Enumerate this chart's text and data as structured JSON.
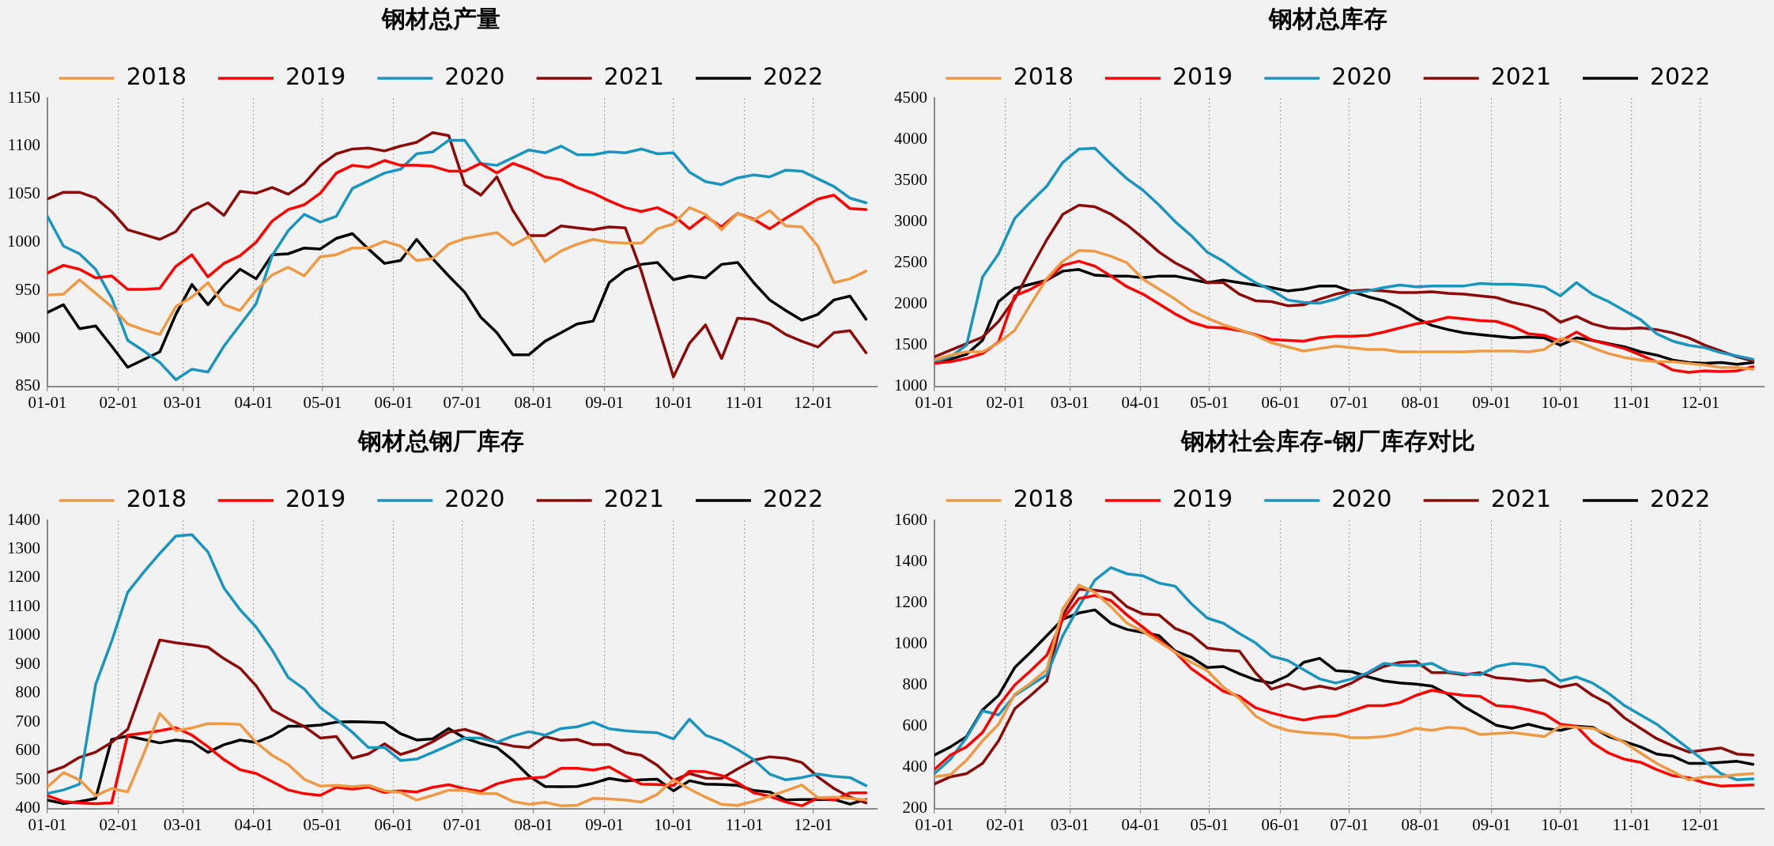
{
  "chart_data": [
    {
      "type": "line",
      "title": "钢材总产量",
      "grid": "x",
      "legend": "top",
      "marker": "none",
      "x": [
        "--01-01",
        "--01-08",
        "--01-15",
        "--01-22",
        "--01-29",
        "--02-05",
        "--02-12",
        "--02-19",
        "--02-26",
        "--03-05",
        "--03-12",
        "--03-19",
        "--03-26",
        "--04-02",
        "--04-09",
        "--04-16",
        "--04-23",
        "--04-30",
        "--05-07",
        "--05-14",
        "--05-21",
        "--05-28",
        "--06-04",
        "--06-11",
        "--06-18",
        "--06-25",
        "--07-02",
        "--07-09",
        "--07-16",
        "--07-23",
        "--07-30",
        "--08-06",
        "--08-13",
        "--08-20",
        "--08-27",
        "--09-03",
        "--09-10",
        "--09-17",
        "--09-24",
        "--10-01",
        "--10-08",
        "--10-15",
        "--10-22",
        "--10-29",
        "--11-05",
        "--11-12",
        "--11-19",
        "--11-26",
        "--12-03",
        "--12-10",
        "--12-17",
        "--12-24"
      ],
      "xlim": [
        "--01-01",
        "--12-29"
      ],
      "xticks": [
        {
          "value": "--01-01",
          "label": "01-01"
        },
        {
          "value": "--02-01",
          "label": "02-01"
        },
        {
          "value": "--03-01",
          "label": "03-01"
        },
        {
          "value": "--04-01",
          "label": "04-01"
        },
        {
          "value": "--05-01",
          "label": "05-01"
        },
        {
          "value": "--06-01",
          "label": "06-01"
        },
        {
          "value": "--07-01",
          "label": "07-01"
        },
        {
          "value": "--08-01",
          "label": "08-01"
        },
        {
          "value": "--09-01",
          "label": "09-01"
        },
        {
          "value": "--10-01",
          "label": "10-01"
        },
        {
          "value": "--11-01",
          "label": "11-01"
        },
        {
          "value": "--12-01",
          "label": "12-01"
        }
      ],
      "ylim": [
        850,
        1150
      ],
      "yticks": [
        850,
        900,
        950,
        1000,
        1050,
        1100,
        1150
      ],
      "series": [
        {
          "name": "2018",
          "color": "#ee9a45",
          "values": [
            945,
            946,
            961,
            947,
            933,
            915,
            909,
            904,
            933,
            943,
            958,
            935,
            929,
            950,
            966,
            974,
            965,
            985,
            987,
            994,
            994,
            1001,
            996,
            981,
            983,
            998,
            1004,
            1007,
            1010,
            997,
            1006,
            980,
            991,
            998,
            1003,
            1000,
            999,
            999,
            1014,
            1019,
            1036,
            1029,
            1013,
            1030,
            1023,
            1033,
            1017,
            1016,
            996,
            958,
            962,
            970
          ]
        },
        {
          "name": "2019",
          "color": "#ff0000",
          "values": [
            968,
            976,
            972,
            963,
            965,
            951,
            951,
            952,
            975,
            987,
            964,
            978,
            986,
            1000,
            1022,
            1034,
            1039,
            1051,
            1072,
            1080,
            1078,
            1085,
            1080,
            1080,
            1079,
            1074,
            1074,
            1082,
            1072,
            1082,
            1076,
            1068,
            1065,
            1057,
            1051,
            1043,
            1036,
            1032,
            1036,
            1028,
            1014,
            1027,
            1016,
            1030,
            1024,
            1014,
            1025,
            1035,
            1045,
            1049,
            1035,
            1034
          ]
        },
        {
          "name": "2020",
          "color": "#1a95be",
          "values": [
            1027,
            996,
            988,
            972,
            942,
            898,
            887,
            875,
            857,
            868,
            865,
            892,
            914,
            936,
            986,
            1012,
            1029,
            1021,
            1027,
            1056,
            1064,
            1072,
            1076,
            1092,
            1094,
            1106,
            1106,
            1082,
            1080,
            1088,
            1096,
            1093,
            1100,
            1091,
            1091,
            1094,
            1093,
            1097,
            1092,
            1093,
            1073,
            1063,
            1060,
            1067,
            1070,
            1068,
            1075,
            1074,
            1066,
            1058,
            1046,
            1041
          ]
        },
        {
          "name": "2021",
          "color": "#8b0a0a",
          "values": [
            1045,
            1052,
            1052,
            1046,
            1032,
            1013,
            1008,
            1003,
            1011,
            1033,
            1041,
            1028,
            1053,
            1051,
            1057,
            1050,
            1061,
            1080,
            1092,
            1097,
            1098,
            1095,
            1100,
            1104,
            1114,
            1111,
            1060,
            1049,
            1068,
            1033,
            1007,
            1007,
            1017,
            1015,
            1013,
            1016,
            1015,
            970,
            915,
            860,
            895,
            914,
            879,
            921,
            920,
            915,
            904,
            897,
            891,
            906,
            908,
            885
          ]
        },
        {
          "name": "2022",
          "color": "#000000",
          "values": [
            927,
            935,
            910,
            913,
            892,
            870,
            878,
            886,
            925,
            956,
            935,
            955,
            972,
            962,
            987,
            988,
            994,
            993,
            1004,
            1009,
            993,
            978,
            981,
            1003,
            983,
            965,
            948,
            922,
            906,
            883,
            883,
            897,
            906,
            915,
            918,
            958,
            971,
            977,
            979,
            961,
            965,
            963,
            977,
            979,
            958,
            940,
            929,
            919,
            925,
            940,
            944,
            920
          ]
        }
      ]
    },
    {
      "type": "line",
      "title": "钢材总库存",
      "grid": "x",
      "legend": "top",
      "marker": "none",
      "x": [
        "--01-01",
        "--01-08",
        "--01-15",
        "--01-22",
        "--01-29",
        "--02-05",
        "--02-12",
        "--02-19",
        "--02-26",
        "--03-05",
        "--03-12",
        "--03-19",
        "--03-26",
        "--04-02",
        "--04-09",
        "--04-16",
        "--04-23",
        "--04-30",
        "--05-07",
        "--05-14",
        "--05-21",
        "--05-28",
        "--06-04",
        "--06-11",
        "--06-18",
        "--06-25",
        "--07-02",
        "--07-09",
        "--07-16",
        "--07-23",
        "--07-30",
        "--08-06",
        "--08-13",
        "--08-20",
        "--08-27",
        "--09-03",
        "--09-10",
        "--09-17",
        "--09-24",
        "--10-01",
        "--10-08",
        "--10-15",
        "--10-22",
        "--10-29",
        "--11-05",
        "--11-12",
        "--11-19",
        "--11-26",
        "--12-03",
        "--12-10",
        "--12-17",
        "--12-24"
      ],
      "xlim": [
        "--01-01",
        "--12-29"
      ],
      "xticks": [
        {
          "value": "--01-01",
          "label": "01-01"
        },
        {
          "value": "--02-01",
          "label": "02-01"
        },
        {
          "value": "--03-01",
          "label": "03-01"
        },
        {
          "value": "--04-01",
          "label": "04-01"
        },
        {
          "value": "--05-01",
          "label": "05-01"
        },
        {
          "value": "--06-01",
          "label": "06-01"
        },
        {
          "value": "--07-01",
          "label": "07-01"
        },
        {
          "value": "--08-01",
          "label": "08-01"
        },
        {
          "value": "--09-01",
          "label": "09-01"
        },
        {
          "value": "--10-01",
          "label": "10-01"
        },
        {
          "value": "--11-01",
          "label": "11-01"
        },
        {
          "value": "--12-01",
          "label": "12-01"
        }
      ],
      "ylim": [
        1000,
        4500
      ],
      "yticks": [
        1000,
        1500,
        2000,
        2500,
        3000,
        3500,
        4000,
        4500
      ],
      "series": [
        {
          "name": "2018",
          "color": "#ee9a45",
          "values": [
            1320,
            1380,
            1420,
            1420,
            1530,
            1680,
            2000,
            2310,
            2520,
            2650,
            2640,
            2580,
            2500,
            2300,
            2180,
            2060,
            1920,
            1830,
            1750,
            1690,
            1620,
            1530,
            1480,
            1430,
            1460,
            1490,
            1470,
            1450,
            1450,
            1420,
            1420,
            1420,
            1420,
            1420,
            1430,
            1430,
            1430,
            1420,
            1450,
            1580,
            1550,
            1470,
            1400,
            1350,
            1320,
            1300,
            1300,
            1280,
            1260,
            1230,
            1230,
            1210
          ]
        },
        {
          "name": "2019",
          "color": "#ff0000",
          "values": [
            1280,
            1300,
            1340,
            1400,
            1540,
            2100,
            2180,
            2290,
            2470,
            2520,
            2460,
            2340,
            2210,
            2120,
            2000,
            1880,
            1780,
            1720,
            1710,
            1680,
            1630,
            1570,
            1560,
            1550,
            1590,
            1610,
            1610,
            1620,
            1660,
            1710,
            1760,
            1790,
            1840,
            1820,
            1800,
            1790,
            1730,
            1640,
            1620,
            1550,
            1660,
            1560,
            1510,
            1460,
            1380,
            1300,
            1200,
            1170,
            1190,
            1180,
            1190,
            1240
          ]
        },
        {
          "name": "2020",
          "color": "#1a95be",
          "values": [
            1300,
            1360,
            1500,
            2330,
            2610,
            3040,
            3240,
            3430,
            3720,
            3880,
            3890,
            3700,
            3520,
            3380,
            3200,
            3000,
            2830,
            2630,
            2520,
            2380,
            2260,
            2170,
            2050,
            2020,
            2010,
            2060,
            2140,
            2160,
            2200,
            2230,
            2210,
            2220,
            2220,
            2220,
            2250,
            2240,
            2240,
            2230,
            2210,
            2100,
            2260,
            2120,
            2030,
            1920,
            1810,
            1640,
            1550,
            1500,
            1470,
            1410,
            1370,
            1330
          ]
        },
        {
          "name": "2021",
          "color": "#8b0a0a",
          "values": [
            1360,
            1440,
            1520,
            1600,
            1790,
            2060,
            2430,
            2780,
            3090,
            3200,
            3180,
            3090,
            2960,
            2800,
            2630,
            2500,
            2400,
            2260,
            2260,
            2120,
            2040,
            2030,
            1980,
            1990,
            2060,
            2120,
            2160,
            2170,
            2160,
            2140,
            2140,
            2150,
            2130,
            2120,
            2100,
            2080,
            2020,
            1980,
            1920,
            1780,
            1850,
            1760,
            1710,
            1700,
            1710,
            1690,
            1650,
            1590,
            1500,
            1430,
            1360,
            1310
          ]
        },
        {
          "name": "2022",
          "color": "#000000",
          "values": [
            1310,
            1330,
            1390,
            1560,
            2030,
            2190,
            2240,
            2290,
            2400,
            2420,
            2350,
            2340,
            2340,
            2320,
            2340,
            2340,
            2300,
            2260,
            2290,
            2260,
            2230,
            2200,
            2160,
            2180,
            2220,
            2220,
            2150,
            2090,
            2040,
            1950,
            1830,
            1740,
            1690,
            1650,
            1630,
            1610,
            1590,
            1600,
            1590,
            1500,
            1590,
            1560,
            1520,
            1480,
            1420,
            1380,
            1320,
            1290,
            1280,
            1290,
            1270,
            1290
          ]
        }
      ]
    },
    {
      "type": "line",
      "title": "钢材总钢厂库存",
      "grid": "x",
      "legend": "top",
      "marker": "none",
      "x": [
        "--01-01",
        "--01-08",
        "--01-15",
        "--01-22",
        "--01-29",
        "--02-05",
        "--02-12",
        "--02-19",
        "--02-26",
        "--03-05",
        "--03-12",
        "--03-19",
        "--03-26",
        "--04-02",
        "--04-09",
        "--04-16",
        "--04-23",
        "--04-30",
        "--05-07",
        "--05-14",
        "--05-21",
        "--05-28",
        "--06-04",
        "--06-11",
        "--06-18",
        "--06-25",
        "--07-02",
        "--07-09",
        "--07-16",
        "--07-23",
        "--07-30",
        "--08-06",
        "--08-13",
        "--08-20",
        "--08-27",
        "--09-03",
        "--09-10",
        "--09-17",
        "--09-24",
        "--10-01",
        "--10-08",
        "--10-15",
        "--10-22",
        "--10-29",
        "--11-05",
        "--11-12",
        "--11-19",
        "--11-26",
        "--12-03",
        "--12-10",
        "--12-17",
        "--12-24"
      ],
      "xlim": [
        "--01-01",
        "--12-29"
      ],
      "xticks": [
        {
          "value": "--01-01",
          "label": "01-01"
        },
        {
          "value": "--02-01",
          "label": "02-01"
        },
        {
          "value": "--03-01",
          "label": "03-01"
        },
        {
          "value": "--04-01",
          "label": "04-01"
        },
        {
          "value": "--05-01",
          "label": "05-01"
        },
        {
          "value": "--06-01",
          "label": "06-01"
        },
        {
          "value": "--07-01",
          "label": "07-01"
        },
        {
          "value": "--08-01",
          "label": "08-01"
        },
        {
          "value": "--09-01",
          "label": "09-01"
        },
        {
          "value": "--10-01",
          "label": "10-01"
        },
        {
          "value": "--11-01",
          "label": "11-01"
        },
        {
          "value": "--12-01",
          "label": "12-01"
        }
      ],
      "ylim": [
        400,
        1400
      ],
      "yticks": [
        400,
        500,
        600,
        700,
        800,
        900,
        1000,
        1100,
        1200,
        1300,
        1400
      ],
      "series": [
        {
          "name": "2018",
          "color": "#ee9a45",
          "values": [
            475,
            525,
            500,
            445,
            470,
            458,
            590,
            730,
            670,
            680,
            695,
            695,
            692,
            630,
            585,
            553,
            502,
            478,
            481,
            476,
            481,
            462,
            456,
            430,
            446,
            464,
            463,
            452,
            452,
            425,
            415,
            422,
            410,
            412,
            436,
            434,
            430,
            423,
            450,
            500,
            468,
            440,
            415,
            411,
            426,
            443,
            462,
            482,
            438,
            440,
            436,
            430
          ]
        },
        {
          "name": "2019",
          "color": "#ff0000",
          "values": [
            445,
            425,
            420,
            417,
            420,
            655,
            662,
            670,
            681,
            655,
            615,
            570,
            535,
            522,
            494,
            465,
            452,
            446,
            474,
            468,
            475,
            456,
            462,
            458,
            474,
            483,
            469,
            460,
            486,
            500,
            506,
            510,
            540,
            540,
            534,
            545,
            514,
            485,
            484,
            480,
            530,
            528,
            515,
            490,
            455,
            443,
            423,
            410,
            437,
            430,
            455,
            455
          ]
        },
        {
          "name": "2020",
          "color": "#1a95be",
          "values": [
            453,
            465,
            485,
            830,
            980,
            1150,
            1220,
            1285,
            1345,
            1350,
            1290,
            1165,
            1090,
            1030,
            950,
            855,
            815,
            750,
            710,
            665,
            612,
            612,
            567,
            572,
            595,
            620,
            645,
            645,
            630,
            652,
            667,
            655,
            678,
            684,
            700,
            677,
            670,
            666,
            663,
            642,
            710,
            655,
            635,
            605,
            570,
            520,
            500,
            508,
            520,
            512,
            508,
            480
          ]
        },
        {
          "name": "2021",
          "color": "#8b0a0a",
          "values": [
            525,
            545,
            578,
            596,
            630,
            675,
            830,
            985,
            975,
            968,
            960,
            920,
            887,
            826,
            743,
            712,
            685,
            645,
            650,
            575,
            590,
            625,
            588,
            605,
            632,
            665,
            675,
            658,
            630,
            617,
            612,
            650,
            637,
            640,
            622,
            622,
            595,
            585,
            550,
            498,
            522,
            506,
            505,
            538,
            568,
            580,
            575,
            560,
            510,
            470,
            440,
            420
          ]
        },
        {
          "name": "2022",
          "color": "#000000",
          "values": [
            430,
            418,
            425,
            435,
            640,
            652,
            640,
            628,
            638,
            632,
            595,
            622,
            638,
            630,
            652,
            686,
            686,
            690,
            700,
            702,
            700,
            698,
            660,
            638,
            642,
            678,
            645,
            626,
            612,
            568,
            513,
            477,
            476,
            477,
            488,
            505,
            496,
            500,
            502,
            462,
            497,
            485,
            484,
            481,
            463,
            458,
            430,
            432,
            432,
            432,
            416,
            432
          ]
        }
      ]
    },
    {
      "type": "line",
      "title": "钢材社会库存-钢厂库存对比",
      "grid": "x",
      "legend": "top",
      "marker": "none",
      "x": [
        "--01-01",
        "--01-08",
        "--01-15",
        "--01-22",
        "--01-29",
        "--02-05",
        "--02-12",
        "--02-19",
        "--02-26",
        "--03-05",
        "--03-12",
        "--03-19",
        "--03-26",
        "--04-02",
        "--04-09",
        "--04-16",
        "--04-23",
        "--04-30",
        "--05-07",
        "--05-14",
        "--05-21",
        "--05-28",
        "--06-04",
        "--06-11",
        "--06-18",
        "--06-25",
        "--07-02",
        "--07-09",
        "--07-16",
        "--07-23",
        "--07-30",
        "--08-06",
        "--08-13",
        "--08-20",
        "--08-27",
        "--09-03",
        "--09-10",
        "--09-17",
        "--09-24",
        "--10-01",
        "--10-08",
        "--10-15",
        "--10-22",
        "--10-29",
        "--11-05",
        "--11-12",
        "--11-19",
        "--11-26",
        "--12-03",
        "--12-10",
        "--12-17",
        "--12-24"
      ],
      "xlim": [
        "--01-01",
        "--12-29"
      ],
      "xticks": [
        {
          "value": "--01-01",
          "label": "01-01"
        },
        {
          "value": "--02-01",
          "label": "02-01"
        },
        {
          "value": "--03-01",
          "label": "03-01"
        },
        {
          "value": "--04-01",
          "label": "04-01"
        },
        {
          "value": "--05-01",
          "label": "05-01"
        },
        {
          "value": "--06-01",
          "label": "06-01"
        },
        {
          "value": "--07-01",
          "label": "07-01"
        },
        {
          "value": "--08-01",
          "label": "08-01"
        },
        {
          "value": "--09-01",
          "label": "09-01"
        },
        {
          "value": "--10-01",
          "label": "10-01"
        },
        {
          "value": "--11-01",
          "label": "11-01"
        },
        {
          "value": "--12-01",
          "label": "12-01"
        }
      ],
      "ylim": [
        200,
        1600
      ],
      "yticks": [
        200,
        400,
        600,
        800,
        1000,
        1200,
        1400,
        1600
      ],
      "series": [
        {
          "name": "2018",
          "color": "#ee9a45",
          "values": [
            355,
            365,
            435,
            530,
            610,
            755,
            810,
            875,
            1170,
            1285,
            1250,
            1180,
            1100,
            1060,
            1010,
            960,
            910,
            870,
            790,
            735,
            650,
            605,
            580,
            570,
            565,
            560,
            545,
            545,
            550,
            565,
            590,
            580,
            595,
            590,
            560,
            565,
            570,
            560,
            550,
            600,
            595,
            590,
            560,
            520,
            470,
            420,
            380,
            340,
            355,
            355,
            365,
            370
          ]
        },
        {
          "name": "2019",
          "color": "#ff0000",
          "values": [
            390,
            460,
            500,
            570,
            700,
            800,
            870,
            945,
            1120,
            1220,
            1235,
            1210,
            1140,
            1080,
            1020,
            960,
            880,
            825,
            770,
            745,
            690,
            665,
            645,
            630,
            645,
            650,
            675,
            700,
            700,
            715,
            750,
            775,
            760,
            750,
            745,
            700,
            695,
            680,
            660,
            610,
            600,
            520,
            470,
            440,
            425,
            390,
            360,
            350,
            325,
            310,
            312,
            315
          ]
        },
        {
          "name": "2020",
          "color": "#1a95be",
          "values": [
            370,
            440,
            545,
            675,
            655,
            750,
            800,
            850,
            1040,
            1180,
            1310,
            1370,
            1340,
            1330,
            1295,
            1280,
            1195,
            1125,
            1100,
            1050,
            1005,
            940,
            920,
            875,
            830,
            810,
            830,
            860,
            905,
            895,
            895,
            905,
            865,
            855,
            850,
            890,
            905,
            900,
            885,
            820,
            840,
            810,
            760,
            700,
            655,
            610,
            550,
            490,
            430,
            370,
            340,
            345
          ]
        },
        {
          "name": "2021",
          "color": "#8b0a0a",
          "values": [
            320,
            355,
            370,
            420,
            530,
            685,
            750,
            820,
            1140,
            1265,
            1260,
            1250,
            1180,
            1145,
            1140,
            1075,
            1045,
            980,
            970,
            965,
            860,
            780,
            805,
            780,
            795,
            780,
            810,
            855,
            890,
            910,
            915,
            860,
            860,
            850,
            860,
            835,
            830,
            820,
            825,
            790,
            805,
            750,
            710,
            640,
            590,
            540,
            505,
            475,
            485,
            495,
            465,
            460
          ]
        },
        {
          "name": "2022",
          "color": "#000000",
          "values": [
            460,
            500,
            550,
            680,
            750,
            885,
            960,
            1040,
            1120,
            1150,
            1165,
            1100,
            1070,
            1055,
            1040,
            965,
            935,
            885,
            890,
            855,
            825,
            810,
            845,
            910,
            930,
            870,
            865,
            840,
            820,
            810,
            805,
            795,
            755,
            695,
            650,
            605,
            590,
            610,
            590,
            580,
            600,
            595,
            550,
            525,
            500,
            465,
            455,
            420,
            420,
            425,
            430,
            415
          ]
        }
      ]
    }
  ]
}
